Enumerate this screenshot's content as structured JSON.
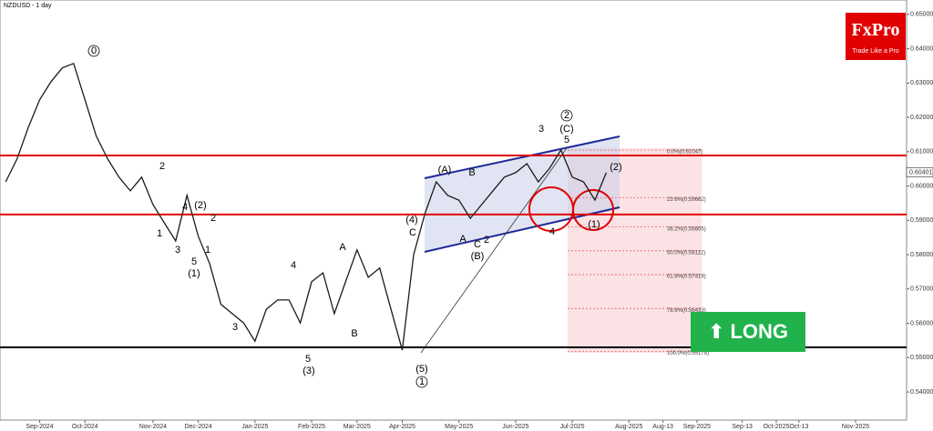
{
  "chart_data": {
    "type": "line",
    "title": "NZDUSD - 1 day",
    "logo": "FxPro",
    "tagline": "Trade Like a Pro",
    "signal": "LONG",
    "categories": [
      null,
      null,
      null,
      "Sep-2024",
      null,
      null,
      null,
      "Oct-2024",
      null,
      null,
      null,
      null,
      null,
      "Nov-2024",
      null,
      null,
      null,
      "Dec-2024",
      null,
      null,
      null,
      null,
      "Jan-2025",
      null,
      null,
      null,
      null,
      "Feb-2025",
      null,
      null,
      null,
      "Mar-2025",
      null,
      null,
      null,
      "Apr-2025",
      null,
      null,
      null,
      null,
      "May-2025",
      null,
      null,
      null,
      null,
      "Jun-2025",
      null,
      null,
      null,
      null,
      "Jul-2025",
      null,
      null,
      null,
      null,
      "Aug-2025",
      null,
      null,
      "Aug-13",
      null,
      null,
      "Sep-2025",
      null,
      null,
      null,
      "Sep-13",
      null,
      null,
      "Oct-2025",
      null,
      "Oct-13",
      null,
      null,
      null,
      null,
      "Nov-2025",
      null,
      null,
      null,
      null
    ],
    "series": [
      {
        "name": "NZDUSD",
        "color": "#1a1a1a",
        "values": [
          0.6012,
          0.6079,
          0.6171,
          0.6251,
          0.6304,
          0.6344,
          0.6357,
          0.6251,
          0.6145,
          0.6079,
          0.6026,
          0.5986,
          0.6026,
          0.5946,
          0.5893,
          0.584,
          0.5973,
          0.5853,
          0.5774,
          0.5655,
          0.5628,
          0.5601,
          0.5548,
          0.5641,
          0.5668,
          0.5668,
          0.5601,
          0.5721,
          0.5747,
          0.5628,
          0.5721,
          0.5814,
          0.5734,
          0.5761,
          0.5641,
          0.5522,
          0.58,
          0.592,
          0.6012,
          0.5973,
          0.5959,
          0.5906,
          0.5946,
          0.5986,
          0.6026,
          0.6039,
          0.6065,
          0.6012,
          0.6052,
          0.6105,
          0.6026,
          0.6012,
          0.5959,
          0.6039,
          null,
          null,
          null,
          null,
          null,
          null,
          null,
          null,
          null,
          null,
          null,
          null,
          null,
          null,
          null,
          null,
          null,
          null,
          null,
          null,
          null,
          null,
          null,
          null,
          null,
          null
        ]
      }
    ],
    "ylim": [
      0.5318,
      0.6542
    ],
    "yticks": [
      {
        "value": 0.65,
        "label": "0.65000"
      },
      {
        "value": 0.64,
        "label": "0.64000"
      },
      {
        "value": 0.63,
        "label": "0.63000"
      },
      {
        "value": 0.62,
        "label": "0.62000"
      },
      {
        "value": 0.61,
        "label": "0.61000"
      },
      {
        "value": 0.6,
        "label": "0.60000"
      },
      {
        "value": 0.59,
        "label": "0.59000"
      },
      {
        "value": 0.58,
        "label": "0.58000"
      },
      {
        "value": 0.57,
        "label": "0.57000"
      },
      {
        "value": 0.56,
        "label": "0.56000"
      },
      {
        "value": 0.55,
        "label": "0.55000"
      },
      {
        "value": 0.54,
        "label": "0.54000"
      }
    ],
    "last_price": 0.60401,
    "levels": [
      {
        "value": 0.6089,
        "color": "#e00000"
      },
      {
        "value": 0.5917,
        "color": "#e00000"
      },
      {
        "value": 0.553,
        "color": "#000000"
      }
    ],
    "fib_levels": [
      {
        "value": 0.61047,
        "label": "0.0%(0.61047)"
      },
      {
        "value": 0.59662,
        "label": "23.6%(0.59662)"
      },
      {
        "value": 0.58805,
        "label": "38.2%(0.58805)"
      },
      {
        "value": 0.58112,
        "label": "50.0%(0.58112)"
      },
      {
        "value": 0.57419,
        "label": "61.8%(0.57419)"
      },
      {
        "value": 0.56433,
        "label": "78.6%(0.56433)"
      },
      {
        "value": 0.55178,
        "label": "100.0%(0.55178)"
      }
    ],
    "annotations": [
      "0",
      "2",
      "4",
      "(2)",
      "2",
      "1",
      "3",
      "5",
      "1",
      "(1)",
      "3",
      "4",
      "A",
      "5",
      "(3)",
      "B",
      "(4)",
      "C",
      "(5)",
      "1",
      "(A)",
      "B",
      "A",
      "C",
      "2",
      "(B)",
      "3",
      "2",
      "(C)",
      "5",
      "4",
      "(1)",
      "(2)"
    ]
  }
}
